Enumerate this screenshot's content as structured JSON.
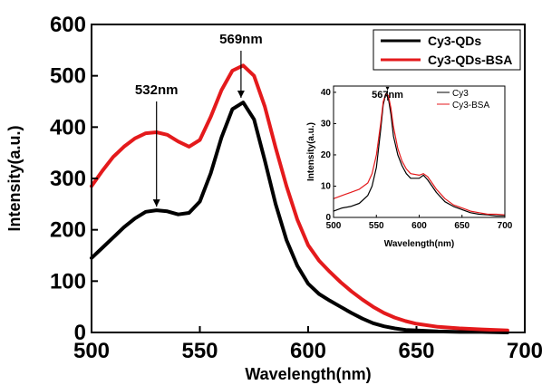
{
  "chart_data": [
    {
      "type": "line",
      "title": "",
      "xlabel": "Wavelength(nm)",
      "ylabel": "Intensity(a.u.)",
      "xlim": [
        500,
        700
      ],
      "ylim": [
        0,
        600
      ],
      "xticks": [
        "500",
        "550",
        "600",
        "650",
        "700"
      ],
      "yticks": [
        "0",
        "100",
        "200",
        "300",
        "400",
        "500",
        "600"
      ],
      "grid": false,
      "legend_position": "top-right",
      "series": [
        {
          "name": "Cy3-QDs",
          "color": "#000000",
          "x": [
            500,
            505,
            510,
            515,
            520,
            525,
            530,
            535,
            540,
            545,
            550,
            555,
            560,
            565,
            570,
            575,
            580,
            585,
            590,
            595,
            600,
            605,
            610,
            615,
            620,
            625,
            630,
            635,
            640,
            645,
            650,
            660,
            670,
            680,
            692
          ],
          "y": [
            145,
            165,
            185,
            205,
            222,
            235,
            238,
            236,
            230,
            233,
            255,
            310,
            380,
            435,
            448,
            415,
            335,
            250,
            180,
            130,
            95,
            75,
            62,
            50,
            38,
            27,
            18,
            12,
            8,
            5,
            4,
            2,
            1,
            1,
            0
          ]
        },
        {
          "name": "Cy3-QDs-BSA",
          "color": "#e41a1c",
          "x": [
            500,
            505,
            510,
            515,
            520,
            525,
            530,
            535,
            540,
            545,
            550,
            555,
            560,
            565,
            570,
            575,
            580,
            585,
            590,
            595,
            600,
            605,
            610,
            615,
            620,
            625,
            630,
            635,
            640,
            645,
            650,
            660,
            670,
            680,
            692
          ],
          "y": [
            285,
            315,
            342,
            362,
            378,
            388,
            390,
            385,
            372,
            362,
            375,
            420,
            472,
            510,
            520,
            500,
            440,
            360,
            285,
            220,
            170,
            140,
            118,
            98,
            80,
            64,
            50,
            38,
            29,
            22,
            17,
            11,
            8,
            6,
            4
          ]
        }
      ],
      "annotations": [
        {
          "text": "532nm",
          "x": 530,
          "y": 238
        },
        {
          "text": "569nm",
          "x": 569,
          "y": 450
        }
      ]
    },
    {
      "type": "line",
      "title": "",
      "xlabel": "Wavelength(nm)",
      "ylabel": "Intensity(a.u.)",
      "xlim": [
        500,
        700
      ],
      "ylim": [
        0,
        42
      ],
      "xticks": [
        "500",
        "550",
        "600",
        "650",
        "700"
      ],
      "yticks": [
        "0",
        "10",
        "20",
        "30",
        "40"
      ],
      "grid": false,
      "legend_position": "top-right",
      "series": [
        {
          "name": "Cy3",
          "color": "#000000",
          "x": [
            500,
            510,
            520,
            530,
            540,
            545,
            550,
            555,
            558,
            561,
            564,
            567,
            570,
            575,
            580,
            585,
            590,
            600,
            605,
            610,
            615,
            620,
            630,
            640,
            650,
            660,
            670,
            680,
            690,
            700
          ],
          "y": [
            2,
            3,
            3.5,
            4.5,
            7,
            10,
            16,
            28,
            36,
            39.5,
            38,
            33,
            26,
            20,
            16.5,
            14,
            12.5,
            12.5,
            13.5,
            12,
            10,
            8,
            5,
            3.5,
            2.5,
            1.5,
            1,
            0.8,
            0.5,
            0.5
          ]
        },
        {
          "name": "Cy3-BSA",
          "color": "#e41a1c",
          "x": [
            500,
            510,
            520,
            530,
            540,
            545,
            550,
            555,
            558,
            561,
            564,
            567,
            570,
            575,
            580,
            585,
            590,
            600,
            605,
            610,
            615,
            620,
            630,
            640,
            650,
            660,
            670,
            680,
            690,
            700
          ],
          "y": [
            6,
            7,
            8,
            9,
            11,
            14,
            20,
            30,
            37,
            39.5,
            39,
            35,
            29,
            22,
            18,
            15.5,
            14,
            13.5,
            14,
            13,
            11,
            9,
            6,
            4,
            3,
            2,
            1.5,
            1,
            1,
            0.8
          ]
        }
      ],
      "annotations": [
        {
          "text": "567nm",
          "x": 563,
          "y": 40
        }
      ]
    }
  ]
}
